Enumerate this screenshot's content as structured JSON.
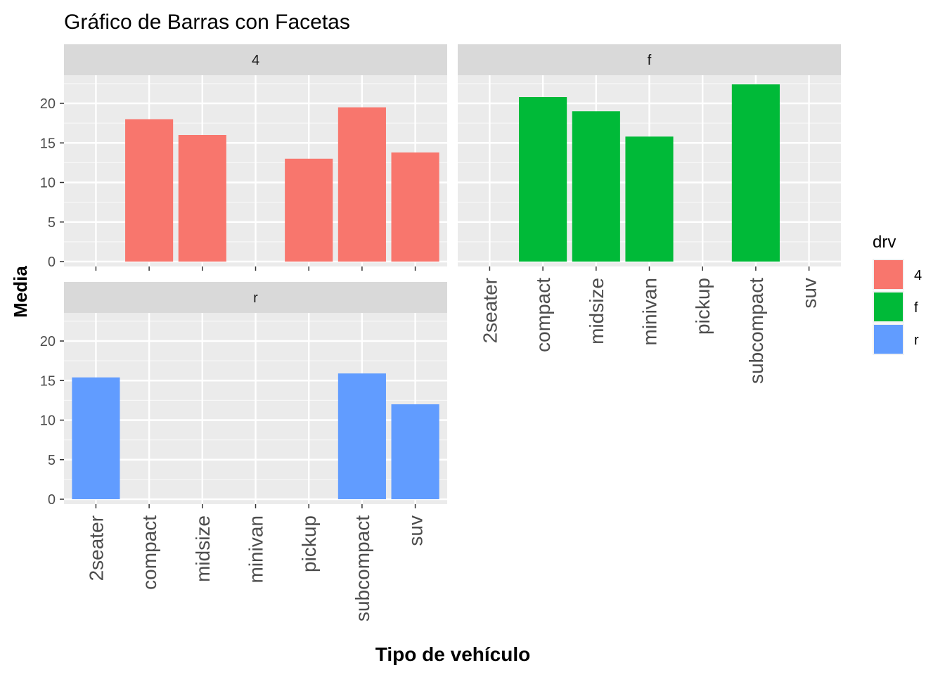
{
  "chart_data": {
    "type": "bar",
    "title": "Gráfico de Barras con Facetas",
    "xlabel": "Tipo de vehículo",
    "ylabel": "Media",
    "categories": [
      "2seater",
      "compact",
      "midsize",
      "minivan",
      "pickup",
      "subcompact",
      "suv"
    ],
    "ylim": [
      0,
      23
    ],
    "yticks": [
      0,
      5,
      10,
      15,
      20
    ],
    "grid": true,
    "legend": {
      "title": "drv",
      "position": "right",
      "entries": [
        {
          "label": "4",
          "color": "#F8766D"
        },
        {
          "label": "f",
          "color": "#00BA38"
        },
        {
          "label": "r",
          "color": "#619CFF"
        }
      ]
    },
    "facets": [
      {
        "strip": "4",
        "color": "#F8766D",
        "values": [
          null,
          18.0,
          16.0,
          null,
          13.0,
          19.5,
          13.8
        ]
      },
      {
        "strip": "f",
        "color": "#00BA38",
        "values": [
          null,
          20.8,
          19.0,
          15.8,
          null,
          22.4,
          null
        ]
      },
      {
        "strip": "r",
        "color": "#619CFF",
        "values": [
          15.4,
          null,
          null,
          null,
          null,
          15.9,
          12.0
        ]
      }
    ]
  }
}
